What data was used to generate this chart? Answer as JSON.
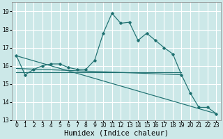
{
  "xlabel": "Humidex (Indice chaleur)",
  "xlim": [
    -0.5,
    23.5
  ],
  "ylim": [
    13,
    19.5
  ],
  "yticks": [
    13,
    14,
    15,
    16,
    17,
    18,
    19
  ],
  "xticks": [
    0,
    1,
    2,
    3,
    4,
    5,
    6,
    7,
    8,
    9,
    10,
    11,
    12,
    13,
    14,
    15,
    16,
    17,
    18,
    19,
    20,
    21,
    22,
    23
  ],
  "bg_color": "#cce8e8",
  "grid_color": "#ffffff",
  "line_color": "#1e7070",
  "line1_x": [
    0,
    1,
    2,
    3,
    4,
    5,
    6,
    7,
    8,
    9,
    10,
    11,
    12,
    13,
    14,
    15,
    16,
    17,
    18,
    19,
    20,
    21,
    22,
    23
  ],
  "line1_y": [
    16.55,
    15.5,
    15.8,
    16.0,
    16.1,
    16.1,
    15.9,
    15.8,
    15.8,
    16.3,
    17.8,
    18.9,
    18.35,
    18.4,
    17.4,
    17.8,
    17.4,
    17.0,
    16.65,
    15.5,
    14.5,
    13.7,
    13.7,
    13.35
  ],
  "line2_x": [
    0,
    23
  ],
  "line2_y": [
    16.55,
    13.35
  ],
  "line3_x": [
    0,
    19
  ],
  "line3_y": [
    15.85,
    15.5
  ],
  "line4_x": [
    0,
    19
  ],
  "line4_y": [
    15.65,
    15.65
  ],
  "tick_fontsize": 5.5,
  "xlabel_fontsize": 7.5
}
